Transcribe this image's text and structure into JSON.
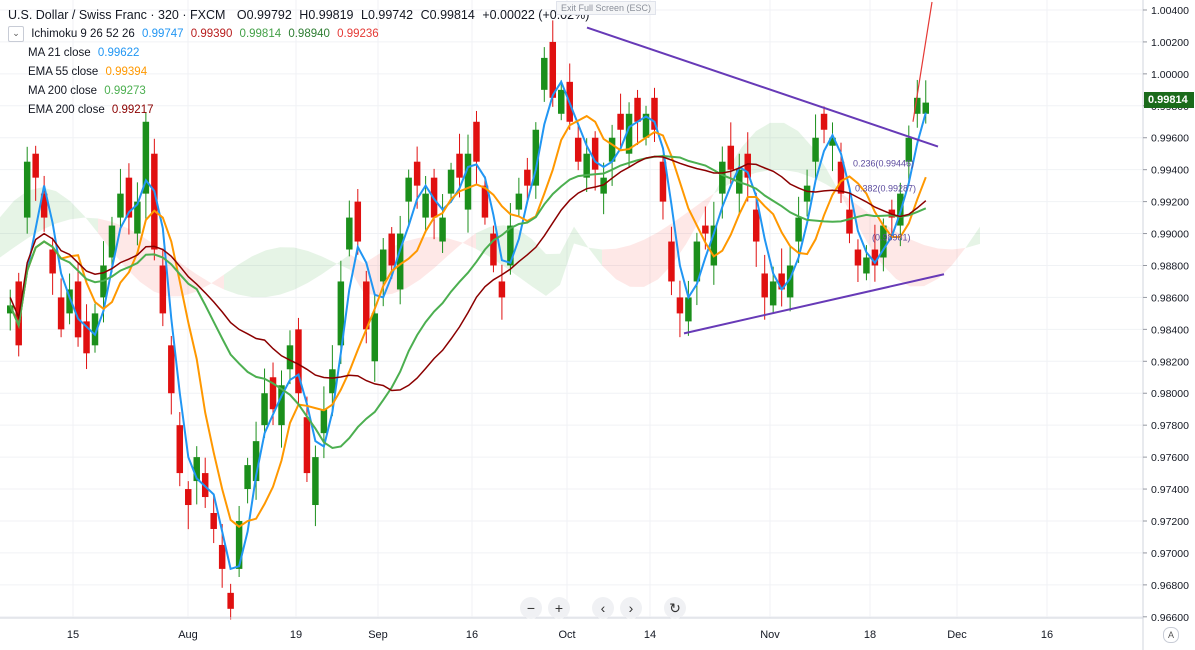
{
  "header": {
    "title": "U.S. Dollar / Swiss Franc · 320 · FXCM",
    "ohlc": {
      "o": "O0.99792",
      "h": "H0.99819",
      "l": "L0.99742",
      "c": "C0.99814",
      "chg": "+0.00022 (+0.02%)"
    }
  },
  "indicators": {
    "ichimoku": {
      "label": "Ichimoku 9 26 52 26",
      "values": [
        "0.99747",
        "0.99390",
        "0.99814",
        "0.98940",
        "0.99236"
      ],
      "colors": [
        "#2196f3",
        "#b71c1c",
        "#43a047",
        "#2e7d32",
        "#e53935"
      ]
    },
    "ma21": {
      "label": "MA 21 close",
      "value": "0.99622",
      "color": "#2196f3"
    },
    "ema55": {
      "label": "EMA 55 close",
      "value": "0.99394",
      "color": "#ff9800"
    },
    "ma200": {
      "label": "MA 200 close",
      "value": "0.99273",
      "color": "#4caf50"
    },
    "ema200": {
      "label": "EMA 200 close",
      "value": "0.99217",
      "color": "#8b0000"
    }
  },
  "exit_fullscreen": "Exit Full Screen (ESC)",
  "toolbar": {
    "zoom_out": "−",
    "zoom_in": "+",
    "prev": "‹",
    "next": "›",
    "reset": "↻"
  },
  "last_price": "0.99814",
  "axis_auto": "A",
  "chart_data": {
    "type": "candlestick",
    "title": "U.S. Dollar / Swiss Franc · 320 · FXCM",
    "ylim": [
      0.9658,
      1.0045
    ],
    "y_ticks": [
      "1.00400",
      "1.00200",
      "1.00000",
      "0.99800",
      "0.99600",
      "0.99400",
      "0.99200",
      "0.99000",
      "0.98800",
      "0.98600",
      "0.98400",
      "0.98200",
      "0.98000",
      "0.97800",
      "0.97600",
      "0.97400",
      "0.97200",
      "0.97000",
      "0.96800",
      "0.96600"
    ],
    "x_ticks": [
      "15",
      "Aug",
      "19",
      "Sep",
      "16",
      "Oct",
      "14",
      "Nov",
      "18",
      "Dec",
      "16"
    ],
    "colors": {
      "up": "#1b8f1b",
      "down": "#e01010"
    },
    "close_path": [
      [
        0.985,
        0.9855
      ],
      [
        0.987,
        0.983
      ],
      [
        0.991,
        0.9945
      ],
      [
        0.995,
        0.9935
      ],
      [
        0.9925,
        0.991
      ],
      [
        0.989,
        0.9875
      ],
      [
        0.986,
        0.984
      ],
      [
        0.985,
        0.9865
      ],
      [
        0.987,
        0.9835
      ],
      [
        0.9845,
        0.9825
      ],
      [
        0.983,
        0.985
      ],
      [
        0.986,
        0.988
      ],
      [
        0.9885,
        0.9905
      ],
      [
        0.991,
        0.9925
      ],
      [
        0.9935,
        0.991
      ],
      [
        0.99,
        0.992
      ],
      [
        0.9925,
        0.997
      ],
      [
        0.995,
        0.989
      ],
      [
        0.988,
        0.985
      ],
      [
        0.983,
        0.98
      ],
      [
        0.978,
        0.975
      ],
      [
        0.974,
        0.973
      ],
      [
        0.9745,
        0.976
      ],
      [
        0.975,
        0.9735
      ],
      [
        0.9725,
        0.9715
      ],
      [
        0.9705,
        0.969
      ],
      [
        0.9675,
        0.9665
      ],
      [
        0.969,
        0.972
      ],
      [
        0.974,
        0.9755
      ],
      [
        0.9745,
        0.977
      ],
      [
        0.978,
        0.98
      ],
      [
        0.981,
        0.979
      ],
      [
        0.978,
        0.9805
      ],
      [
        0.9815,
        0.983
      ],
      [
        0.984,
        0.98
      ],
      [
        0.9785,
        0.975
      ],
      [
        0.973,
        0.976
      ],
      [
        0.9775,
        0.979
      ],
      [
        0.98,
        0.9815
      ],
      [
        0.983,
        0.987
      ],
      [
        0.989,
        0.991
      ],
      [
        0.992,
        0.9895
      ],
      [
        0.987,
        0.984
      ],
      [
        0.982,
        0.985
      ],
      [
        0.987,
        0.989
      ],
      [
        0.99,
        0.988
      ],
      [
        0.9865,
        0.99
      ],
      [
        0.992,
        0.9935
      ],
      [
        0.9945,
        0.993
      ],
      [
        0.991,
        0.9925
      ],
      [
        0.9935,
        0.991
      ],
      [
        0.9895,
        0.991
      ],
      [
        0.9925,
        0.994
      ],
      [
        0.995,
        0.9935
      ],
      [
        0.9915,
        0.995
      ],
      [
        0.997,
        0.9945
      ],
      [
        0.993,
        0.991
      ],
      [
        0.99,
        0.988
      ],
      [
        0.987,
        0.986
      ],
      [
        0.988,
        0.9905
      ],
      [
        0.9915,
        0.9925
      ],
      [
        0.994,
        0.993
      ],
      [
        0.993,
        0.9965
      ],
      [
        0.999,
        1.001
      ],
      [
        1.002,
        0.9985
      ],
      [
        0.9975,
        0.999
      ],
      [
        0.9995,
        0.997
      ],
      [
        0.996,
        0.9945
      ],
      [
        0.9935,
        0.995
      ],
      [
        0.996,
        0.994
      ],
      [
        0.9925,
        0.9935
      ],
      [
        0.9945,
        0.996
      ],
      [
        0.9975,
        0.9965
      ],
      [
        0.995,
        0.9975
      ],
      [
        0.9985,
        0.997
      ],
      [
        0.996,
        0.9975
      ],
      [
        0.9985,
        0.9965
      ],
      [
        0.9945,
        0.992
      ],
      [
        0.9895,
        0.987
      ],
      [
        0.986,
        0.985
      ],
      [
        0.9845,
        0.986
      ],
      [
        0.987,
        0.9895
      ],
      [
        0.9905,
        0.99
      ],
      [
        0.988,
        0.9905
      ],
      [
        0.9925,
        0.9945
      ],
      [
        0.9955,
        0.994
      ],
      [
        0.9925,
        0.994
      ],
      [
        0.995,
        0.9935
      ],
      [
        0.9915,
        0.9895
      ],
      [
        0.9875,
        0.986
      ],
      [
        0.9855,
        0.987
      ],
      [
        0.9875,
        0.9865
      ],
      [
        0.986,
        0.988
      ],
      [
        0.9895,
        0.991
      ],
      [
        0.992,
        0.993
      ],
      [
        0.9945,
        0.996
      ],
      [
        0.9975,
        0.9965
      ],
      [
        0.9955,
        0.996
      ],
      [
        0.9945,
        0.9925
      ],
      [
        0.9915,
        0.99
      ],
      [
        0.989,
        0.988
      ],
      [
        0.9875,
        0.9885
      ],
      [
        0.989,
        0.988
      ],
      [
        0.9885,
        0.9905
      ],
      [
        0.9915,
        0.991
      ],
      [
        0.9905,
        0.9925
      ],
      [
        0.9945,
        0.996
      ],
      [
        0.9975,
        0.9985
      ],
      [
        0.9975,
        0.9982
      ]
    ],
    "annotations": {
      "fib_levels": [
        {
          "label": "0.236(0.99446)",
          "price": 0.99446
        },
        {
          "label": "0.382(0.99287)",
          "price": 0.99287
        },
        {
          "label": "(0.98981)",
          "price": 0.98981
        }
      ],
      "triangle_upper": [
        [
          0.99931,
          1.0029
        ],
        [
          0.99931,
          0.99545
        ]
      ],
      "triangle_lower": [
        [
          0.98375
        ],
        [
          0.98745
        ]
      ]
    }
  }
}
